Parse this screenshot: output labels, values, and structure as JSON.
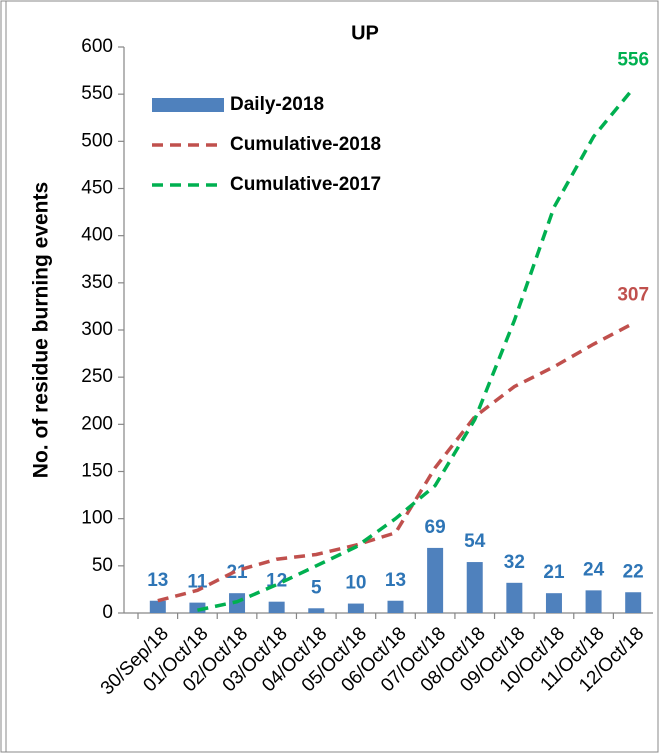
{
  "chart_data": {
    "type": "bar_line",
    "title": "UP",
    "y_label": "No. of residue burning events",
    "categories": [
      "30/Sep/18",
      "01/Oct/18",
      "02/Oct/18",
      "03/Oct/18",
      "04/Oct/18",
      "05/Oct/18",
      "06/Oct/18",
      "07/Oct/18",
      "08/Oct/18",
      "09/Oct/18",
      "10/Oct/18",
      "11/Oct/18",
      "12/Oct/18"
    ],
    "series": [
      {
        "name": "Daily-2018",
        "kind": "bar",
        "color": "#4f81bd",
        "values": [
          13,
          11,
          21,
          12,
          5,
          10,
          13,
          69,
          54,
          32,
          21,
          24,
          22
        ]
      },
      {
        "name": "Cumulative-2018",
        "kind": "line",
        "color": "#c0504d",
        "values": [
          13,
          24,
          45,
          57,
          62,
          72,
          85,
          154,
          208,
          240,
          261,
          285,
          307
        ]
      },
      {
        "name": "Cumulative-2017",
        "kind": "line",
        "color": "#00b050",
        "values": [
          null,
          3,
          12,
          30,
          50,
          70,
          100,
          135,
          205,
          310,
          430,
          505,
          556
        ]
      }
    ],
    "ylim": [
      0,
      600
    ],
    "yticks": [
      0,
      50,
      100,
      150,
      200,
      250,
      300,
      350,
      400,
      450,
      500,
      550,
      600
    ],
    "legend": "upper left"
  }
}
